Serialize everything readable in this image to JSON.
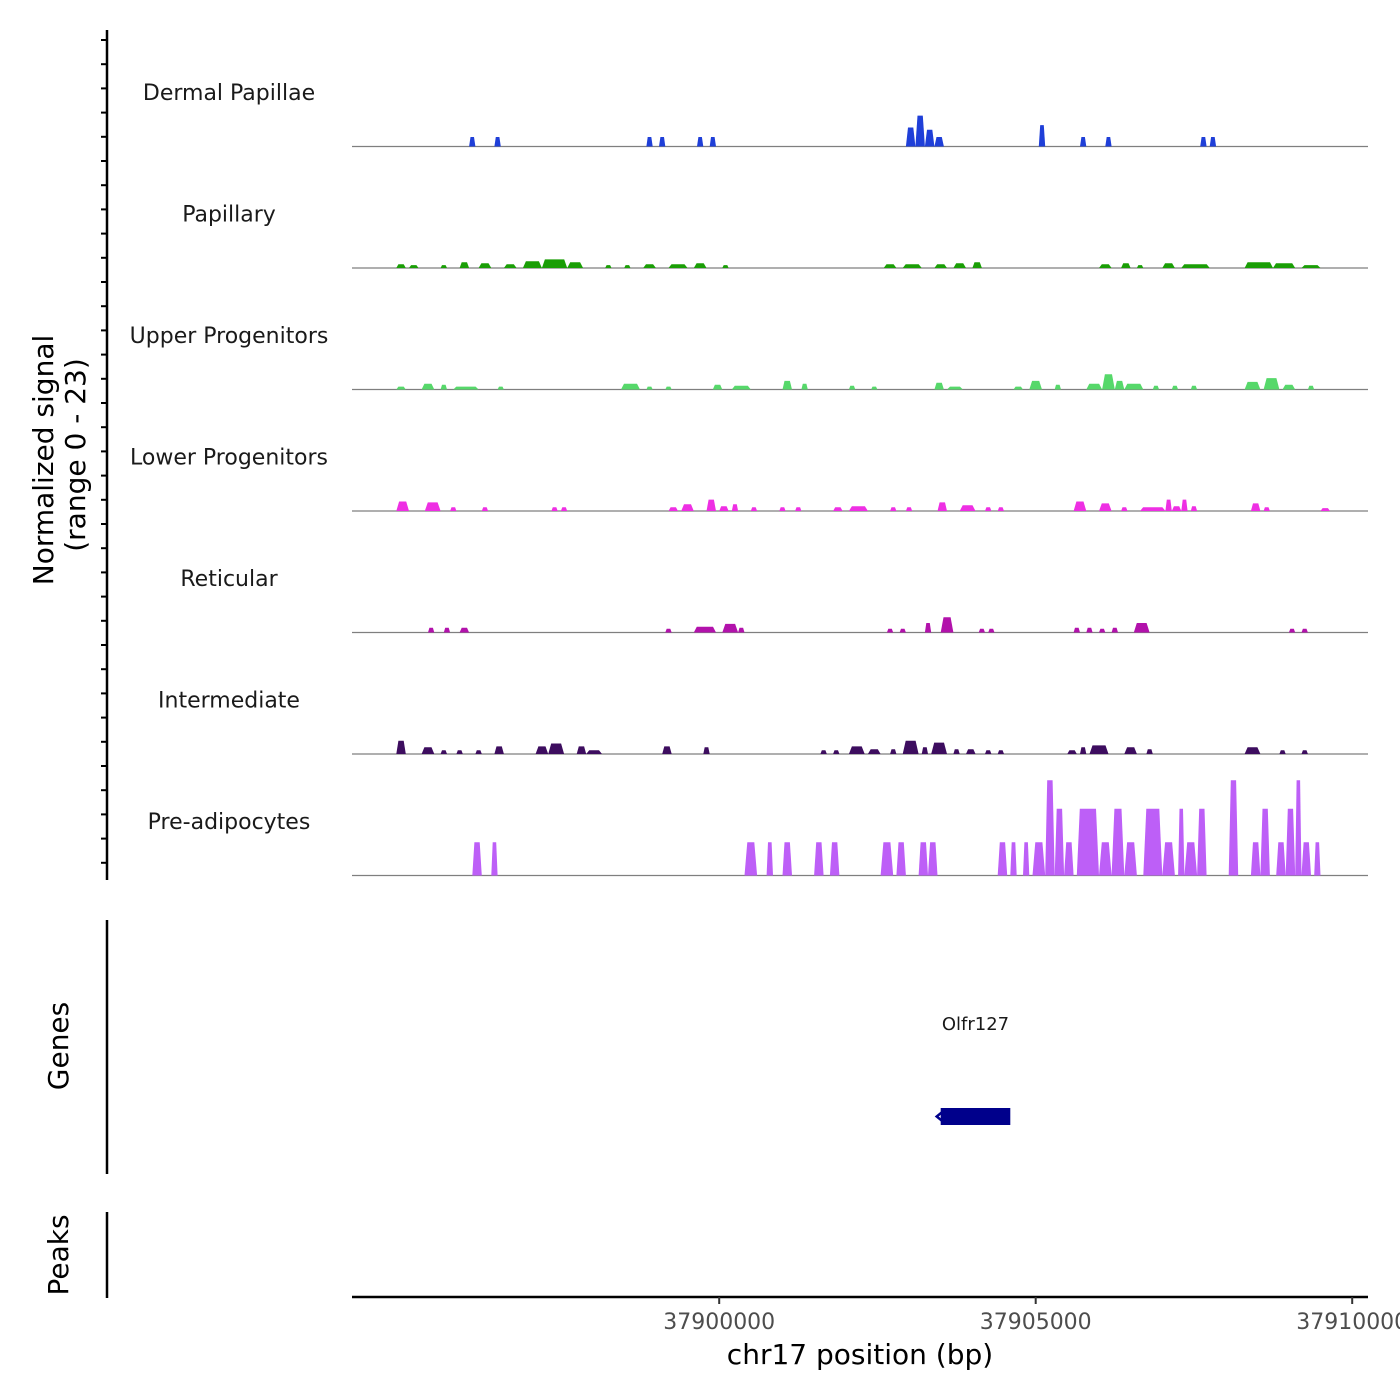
{
  "chart_data": {
    "type": "area",
    "chromosome": "chr17",
    "xlabel": "chr17 position (bp)",
    "xlim": [
      37894200,
      37910250
    ],
    "x_ticks": [
      37900000,
      37905000,
      37910000
    ],
    "x_tick_labels": [
      "37900000",
      "37905000",
      "37910000"
    ],
    "ylabel": "Normalized signal",
    "ylabel_range": "(range 0 - 23)",
    "ylim": [
      0,
      23
    ],
    "genes_label": "Genes",
    "peaks_label": "Peaks",
    "series": [
      {
        "name": "Dermal Papillae",
        "color": "#1f3fd8",
        "regions": [
          [
            37896050,
            37896150,
            2.0
          ],
          [
            37896450,
            37896550,
            2.0
          ],
          [
            37898850,
            37898950,
            2.0
          ],
          [
            37899050,
            37899150,
            2.0
          ],
          [
            37899650,
            37899750,
            2.0
          ],
          [
            37899850,
            37899950,
            2.0
          ],
          [
            37902950,
            37903100,
            4.0
          ],
          [
            37903100,
            37903250,
            6.5
          ],
          [
            37903250,
            37903400,
            3.5
          ],
          [
            37903400,
            37903550,
            2.0
          ],
          [
            37905050,
            37905150,
            4.5
          ],
          [
            37905700,
            37905800,
            2.0
          ],
          [
            37906100,
            37906200,
            2.0
          ],
          [
            37907600,
            37907700,
            2.0
          ],
          [
            37907750,
            37907850,
            2.0
          ]
        ]
      },
      {
        "name": "Papillary",
        "color": "#1a9e06",
        "regions": [
          [
            37894900,
            37895050,
            0.8
          ],
          [
            37895100,
            37895250,
            0.6
          ],
          [
            37895600,
            37895700,
            0.6
          ],
          [
            37895900,
            37896050,
            1.2
          ],
          [
            37896200,
            37896400,
            1.0
          ],
          [
            37896600,
            37896800,
            0.8
          ],
          [
            37896900,
            37897200,
            1.4
          ],
          [
            37897200,
            37897600,
            1.8
          ],
          [
            37897600,
            37897850,
            1.2
          ],
          [
            37898200,
            37898300,
            0.6
          ],
          [
            37898500,
            37898600,
            0.6
          ],
          [
            37898800,
            37899000,
            0.8
          ],
          [
            37899200,
            37899500,
            0.8
          ],
          [
            37899600,
            37899800,
            1.0
          ],
          [
            37900050,
            37900150,
            0.6
          ],
          [
            37902600,
            37902800,
            0.8
          ],
          [
            37902900,
            37903200,
            0.8
          ],
          [
            37903400,
            37903600,
            0.8
          ],
          [
            37903700,
            37903900,
            1.0
          ],
          [
            37904000,
            37904150,
            1.2
          ],
          [
            37906000,
            37906200,
            0.8
          ],
          [
            37906350,
            37906500,
            1.0
          ],
          [
            37906600,
            37906700,
            0.6
          ],
          [
            37907000,
            37907200,
            1.0
          ],
          [
            37907300,
            37907750,
            0.8
          ],
          [
            37908300,
            37908750,
            1.2
          ],
          [
            37908750,
            37909100,
            1.0
          ],
          [
            37909200,
            37909500,
            0.6
          ]
        ]
      },
      {
        "name": "Upper Progenitors",
        "color": "#56d86a",
        "regions": [
          [
            37894900,
            37895050,
            0.6
          ],
          [
            37895300,
            37895500,
            1.2
          ],
          [
            37895600,
            37895700,
            1.0
          ],
          [
            37895800,
            37896200,
            0.6
          ],
          [
            37896500,
            37896600,
            0.6
          ],
          [
            37898450,
            37898750,
            1.2
          ],
          [
            37898850,
            37898950,
            0.6
          ],
          [
            37899150,
            37899250,
            0.6
          ],
          [
            37899900,
            37900050,
            1.0
          ],
          [
            37900200,
            37900500,
            0.8
          ],
          [
            37901000,
            37901150,
            1.8
          ],
          [
            37901300,
            37901400,
            1.2
          ],
          [
            37902050,
            37902150,
            0.8
          ],
          [
            37902400,
            37902500,
            0.6
          ],
          [
            37903400,
            37903550,
            1.4
          ],
          [
            37903600,
            37903850,
            0.6
          ],
          [
            37904650,
            37904800,
            0.6
          ],
          [
            37904900,
            37905100,
            1.8
          ],
          [
            37905300,
            37905400,
            1.0
          ],
          [
            37905800,
            37906050,
            1.2
          ],
          [
            37906050,
            37906250,
            3.2
          ],
          [
            37906250,
            37906400,
            1.8
          ],
          [
            37906400,
            37906700,
            1.2
          ],
          [
            37906850,
            37906950,
            0.8
          ],
          [
            37907150,
            37907250,
            0.8
          ],
          [
            37907450,
            37907550,
            0.8
          ],
          [
            37908300,
            37908550,
            1.6
          ],
          [
            37908600,
            37908850,
            2.4
          ],
          [
            37908900,
            37909100,
            1.0
          ],
          [
            37909300,
            37909400,
            0.8
          ]
        ]
      },
      {
        "name": "Lower Progenitors",
        "color": "#ee2fe3",
        "regions": [
          [
            37894900,
            37895100,
            2.0
          ],
          [
            37895350,
            37895600,
            1.8
          ],
          [
            37895750,
            37895850,
            0.8
          ],
          [
            37896250,
            37896350,
            0.8
          ],
          [
            37897350,
            37897450,
            0.8
          ],
          [
            37897500,
            37897600,
            0.8
          ],
          [
            37899200,
            37899350,
            0.8
          ],
          [
            37899400,
            37899600,
            1.4
          ],
          [
            37899800,
            37899950,
            2.4
          ],
          [
            37900000,
            37900150,
            1.0
          ],
          [
            37900200,
            37900300,
            1.4
          ],
          [
            37900500,
            37900600,
            0.8
          ],
          [
            37900950,
            37901050,
            0.8
          ],
          [
            37901200,
            37901300,
            0.8
          ],
          [
            37901800,
            37901950,
            0.8
          ],
          [
            37902050,
            37902350,
            1.0
          ],
          [
            37902700,
            37902800,
            0.8
          ],
          [
            37902950,
            37903050,
            0.8
          ],
          [
            37903450,
            37903600,
            1.8
          ],
          [
            37903800,
            37904050,
            1.2
          ],
          [
            37904200,
            37904300,
            0.8
          ],
          [
            37904400,
            37904500,
            0.8
          ],
          [
            37905600,
            37905800,
            2.0
          ],
          [
            37906000,
            37906200,
            1.6
          ],
          [
            37906350,
            37906450,
            0.8
          ],
          [
            37906650,
            37907050,
            0.8
          ],
          [
            37907050,
            37907150,
            2.4
          ],
          [
            37907150,
            37907300,
            1.0
          ],
          [
            37907300,
            37907400,
            2.4
          ],
          [
            37907450,
            37907550,
            1.0
          ],
          [
            37908400,
            37908550,
            1.6
          ],
          [
            37908600,
            37908700,
            0.8
          ],
          [
            37909500,
            37909650,
            0.6
          ]
        ]
      },
      {
        "name": "Reticular",
        "color": "#b212ab",
        "regions": [
          [
            37895400,
            37895500,
            1.0
          ],
          [
            37895650,
            37895750,
            1.0
          ],
          [
            37895900,
            37896050,
            1.0
          ],
          [
            37899150,
            37899250,
            0.8
          ],
          [
            37899600,
            37899950,
            1.2
          ],
          [
            37900050,
            37900300,
            1.8
          ],
          [
            37900300,
            37900400,
            1.0
          ],
          [
            37902650,
            37902750,
            0.8
          ],
          [
            37902850,
            37902950,
            0.8
          ],
          [
            37903250,
            37903350,
            2.0
          ],
          [
            37903500,
            37903700,
            3.2
          ],
          [
            37904100,
            37904200,
            0.8
          ],
          [
            37904250,
            37904350,
            0.8
          ],
          [
            37905600,
            37905700,
            1.0
          ],
          [
            37905800,
            37905900,
            1.0
          ],
          [
            37906000,
            37906100,
            0.8
          ],
          [
            37906200,
            37906300,
            1.0
          ],
          [
            37906550,
            37906800,
            2.0
          ],
          [
            37909000,
            37909100,
            0.8
          ],
          [
            37909200,
            37909300,
            0.8
          ]
        ]
      },
      {
        "name": "Intermediate",
        "color": "#3d0d5f",
        "regions": [
          [
            37894900,
            37895050,
            2.8
          ],
          [
            37895300,
            37895500,
            1.4
          ],
          [
            37895600,
            37895700,
            0.8
          ],
          [
            37895850,
            37895950,
            0.8
          ],
          [
            37896150,
            37896250,
            0.8
          ],
          [
            37896450,
            37896600,
            1.6
          ],
          [
            37897100,
            37897300,
            1.6
          ],
          [
            37897300,
            37897550,
            2.2
          ],
          [
            37897750,
            37897900,
            1.6
          ],
          [
            37897900,
            37898150,
            0.8
          ],
          [
            37899100,
            37899250,
            1.6
          ],
          [
            37899750,
            37899850,
            1.4
          ],
          [
            37901600,
            37901700,
            0.8
          ],
          [
            37901800,
            37901900,
            0.8
          ],
          [
            37902050,
            37902300,
            1.6
          ],
          [
            37902350,
            37902550,
            1.0
          ],
          [
            37902700,
            37902800,
            1.0
          ],
          [
            37902900,
            37903150,
            2.8
          ],
          [
            37903200,
            37903300,
            1.4
          ],
          [
            37903350,
            37903600,
            2.4
          ],
          [
            37903700,
            37903800,
            1.0
          ],
          [
            37903900,
            37904050,
            1.0
          ],
          [
            37904200,
            37904300,
            0.8
          ],
          [
            37904400,
            37904500,
            0.8
          ],
          [
            37905500,
            37905650,
            0.8
          ],
          [
            37905700,
            37905800,
            1.4
          ],
          [
            37905850,
            37906150,
            1.8
          ],
          [
            37906400,
            37906600,
            1.4
          ],
          [
            37906750,
            37906850,
            1.0
          ],
          [
            37908300,
            37908550,
            1.4
          ],
          [
            37908850,
            37908950,
            0.8
          ],
          [
            37909200,
            37909300,
            0.8
          ]
        ]
      },
      {
        "name": "Pre-adipocytes",
        "color": "#bd5ff7",
        "regions": [
          [
            37896100,
            37896250,
            7.0
          ],
          [
            37896400,
            37896500,
            7.0
          ],
          [
            37900400,
            37900600,
            7.0
          ],
          [
            37900750,
            37900850,
            7.0
          ],
          [
            37901000,
            37901150,
            7.0
          ],
          [
            37901500,
            37901650,
            7.0
          ],
          [
            37901750,
            37901900,
            7.0
          ],
          [
            37902550,
            37902750,
            7.0
          ],
          [
            37902800,
            37902950,
            7.0
          ],
          [
            37903150,
            37903300,
            7.0
          ],
          [
            37903300,
            37903450,
            7.0
          ],
          [
            37904400,
            37904550,
            7.0
          ],
          [
            37904600,
            37904700,
            7.0
          ],
          [
            37904800,
            37904900,
            7.0
          ],
          [
            37904950,
            37905150,
            7.0
          ],
          [
            37905150,
            37905300,
            20.0
          ],
          [
            37905300,
            37905450,
            14.0
          ],
          [
            37905450,
            37905600,
            7.0
          ],
          [
            37905650,
            37906000,
            14.0
          ],
          [
            37906000,
            37906200,
            7.0
          ],
          [
            37906200,
            37906400,
            14.0
          ],
          [
            37906400,
            37906600,
            7.0
          ],
          [
            37906700,
            37907000,
            14.0
          ],
          [
            37907000,
            37907200,
            7.0
          ],
          [
            37907250,
            37907350,
            14.0
          ],
          [
            37907350,
            37907550,
            7.0
          ],
          [
            37907550,
            37907700,
            14.0
          ],
          [
            37908050,
            37908200,
            20.0
          ],
          [
            37908400,
            37908550,
            7.0
          ],
          [
            37908550,
            37908700,
            14.0
          ],
          [
            37908800,
            37908950,
            7.0
          ],
          [
            37908950,
            37909100,
            14.0
          ],
          [
            37909100,
            37909200,
            20.0
          ],
          [
            37909200,
            37909350,
            7.0
          ],
          [
            37909400,
            37909500,
            7.0
          ]
        ]
      }
    ],
    "genes": [
      {
        "name": "Olfr127",
        "start": 37903500,
        "end": 37904600,
        "strand": "-",
        "color": "#00008b"
      }
    ],
    "peaks": []
  }
}
